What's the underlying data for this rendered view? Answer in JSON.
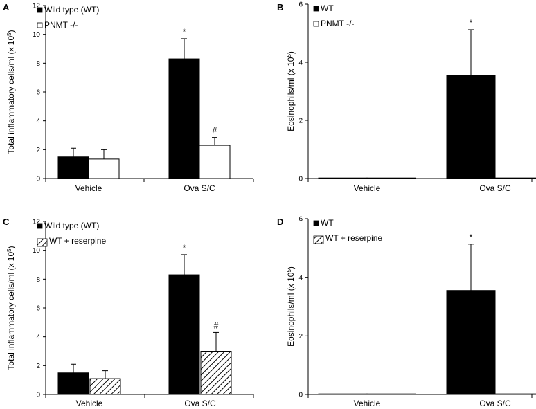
{
  "chart_data": [
    {
      "type": "bar",
      "panel": "A",
      "ylabel": "Total inflammatory cells/ml (x 10",
      "ylabel_sup": "5",
      "ylabel_end": ")",
      "ylim": [
        0,
        12
      ],
      "yticks": [
        0,
        2,
        4,
        6,
        8,
        10,
        12
      ],
      "categories": [
        "Vehicle",
        "Ova S/C"
      ],
      "legend": {
        "placement": "top-left"
      },
      "series": [
        {
          "name": "Wild type (WT)",
          "fill": "solid",
          "values": [
            1.5,
            8.3
          ],
          "errors": [
            0.6,
            1.4
          ],
          "annotations": [
            "",
            "*"
          ]
        },
        {
          "name": "PNMT -/-",
          "fill": "open",
          "values": [
            1.35,
            2.3
          ],
          "errors": [
            0.65,
            0.55
          ],
          "annotations": [
            "",
            "#"
          ]
        }
      ]
    },
    {
      "type": "bar",
      "panel": "B",
      "ylabel": "Eosinophils/ml (x 10",
      "ylabel_sup": "5",
      "ylabel_end": ")",
      "ylim": [
        0,
        6
      ],
      "yticks": [
        0,
        2,
        4,
        6
      ],
      "categories": [
        "Vehicle",
        "Ova S/C"
      ],
      "legend": {
        "placement": "top-left"
      },
      "series": [
        {
          "name": "WT",
          "fill": "solid",
          "values": [
            0.01,
            3.55
          ],
          "errors": [
            0,
            1.57
          ],
          "annotations": [
            "",
            "*"
          ]
        },
        {
          "name": "PNMT -/-",
          "fill": "open",
          "values": [
            0.01,
            0.02
          ],
          "errors": [
            0,
            0
          ],
          "annotations": [
            "",
            ""
          ]
        }
      ]
    },
    {
      "type": "bar",
      "panel": "C",
      "ylabel": "Total inflammatory cells/ml (x 10",
      "ylabel_sup": "5",
      "ylabel_end": ")",
      "ylim": [
        0,
        12
      ],
      "yticks": [
        0,
        2,
        4,
        6,
        8,
        10,
        12
      ],
      "categories": [
        "Vehicle",
        "Ova S/C"
      ],
      "legend": {
        "placement": "top-left"
      },
      "series": [
        {
          "name": "Wild type (WT)",
          "fill": "solid",
          "values": [
            1.5,
            8.3
          ],
          "errors": [
            0.6,
            1.4
          ],
          "annotations": [
            "",
            "*"
          ]
        },
        {
          "name": "WT + reserpine",
          "fill": "hatched",
          "values": [
            1.1,
            3.0
          ],
          "errors": [
            0.55,
            1.3
          ],
          "annotations": [
            "",
            "#"
          ]
        }
      ]
    },
    {
      "type": "bar",
      "panel": "D",
      "ylabel": "Eosinophils/ml (x 10",
      "ylabel_sup": "5",
      "ylabel_end": ")",
      "ylim": [
        0,
        6
      ],
      "yticks": [
        0,
        2,
        4,
        6
      ],
      "categories": [
        "Vehicle",
        "Ova S/C"
      ],
      "legend": {
        "placement": "top-left"
      },
      "series": [
        {
          "name": "WT",
          "fill": "solid",
          "values": [
            0.01,
            3.55
          ],
          "errors": [
            0,
            1.58
          ],
          "annotations": [
            "",
            "*"
          ]
        },
        {
          "name": "WT + reserpine",
          "fill": "hatched",
          "values": [
            0.01,
            0.02
          ],
          "errors": [
            0,
            0
          ],
          "annotations": [
            "",
            ""
          ]
        }
      ]
    }
  ]
}
